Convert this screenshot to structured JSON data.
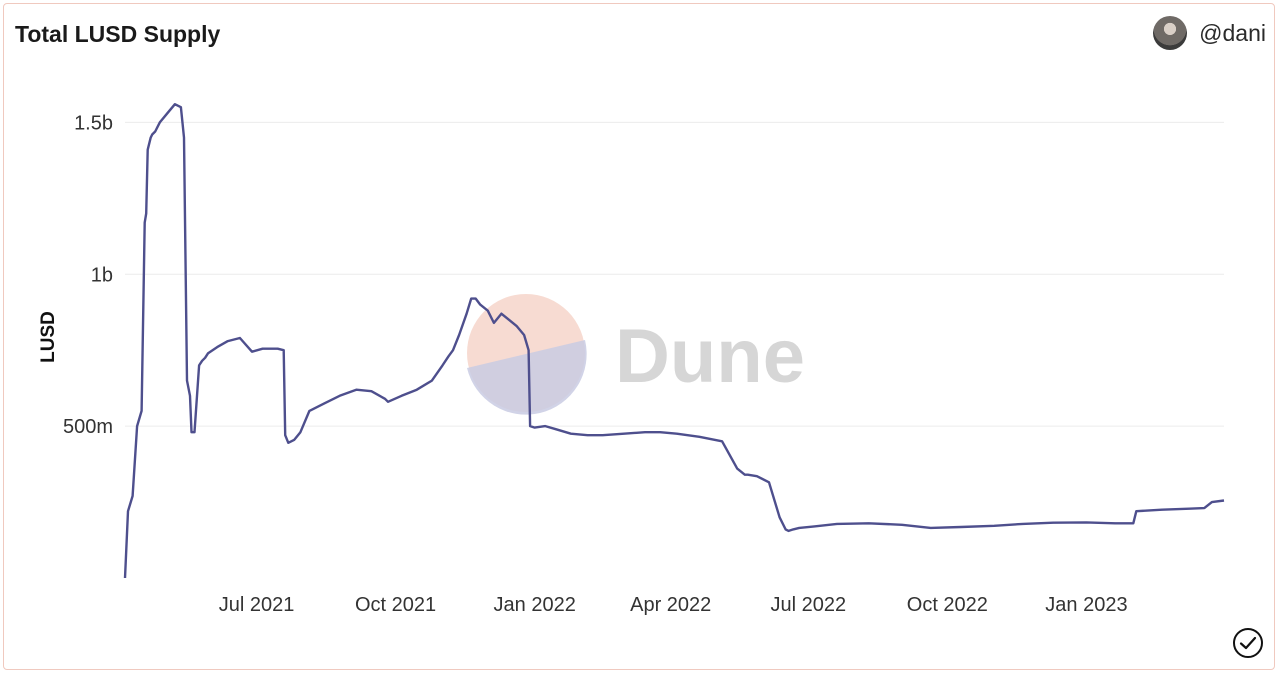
{
  "header": {
    "title": "Total LUSD Supply",
    "author": "@dani"
  },
  "watermark": {
    "text": "Dune"
  },
  "colors": {
    "line": "#4e4f8d",
    "grid": "#ececec",
    "axis_text": "#333333"
  },
  "icons": {
    "avatar": "user-avatar",
    "status": "check-circle-icon"
  },
  "chart_data": {
    "type": "line",
    "title": "Total LUSD Supply",
    "xlabel": "",
    "ylabel": "LUSD",
    "ylim": [
      0,
      1600000000
    ],
    "yticks": [
      {
        "value": 500000000,
        "label": "500m"
      },
      {
        "value": 1000000000,
        "label": "1b"
      },
      {
        "value": 1500000000,
        "label": "1.5b"
      }
    ],
    "xlim": [
      "2021-04-05",
      "2023-04-02"
    ],
    "xticks": [
      {
        "value": "2021-07-01",
        "label": "Jul 2021"
      },
      {
        "value": "2021-10-01",
        "label": "Oct 2021"
      },
      {
        "value": "2022-01-01",
        "label": "Jan 2022"
      },
      {
        "value": "2022-04-01",
        "label": "Apr 2022"
      },
      {
        "value": "2022-07-01",
        "label": "Jul 2022"
      },
      {
        "value": "2022-10-01",
        "label": "Oct 2022"
      },
      {
        "value": "2023-01-01",
        "label": "Jan 2023"
      }
    ],
    "grid": true,
    "legend": "none",
    "series": [
      {
        "x": [
          "2021-04-05",
          "2021-04-07",
          "2021-04-10",
          "2021-04-13",
          "2021-04-16",
          "2021-04-18",
          "2021-04-19",
          "2021-04-20",
          "2021-04-22",
          "2021-04-23",
          "2021-04-25",
          "2021-04-28",
          "2021-05-03",
          "2021-05-08",
          "2021-05-12",
          "2021-05-14",
          "2021-05-16",
          "2021-05-18",
          "2021-05-19",
          "2021-05-21",
          "2021-05-24",
          "2021-05-26",
          "2021-05-28",
          "2021-05-30",
          "2021-06-05",
          "2021-06-12",
          "2021-06-20",
          "2021-06-28",
          "2021-07-05",
          "2021-07-10",
          "2021-07-15",
          "2021-07-19",
          "2021-07-20",
          "2021-07-22",
          "2021-07-26",
          "2021-07-30",
          "2021-08-05",
          "2021-08-15",
          "2021-08-25",
          "2021-09-05",
          "2021-09-15",
          "2021-09-24",
          "2021-09-26",
          "2021-10-05",
          "2021-10-15",
          "2021-10-25",
          "2021-11-01",
          "2021-11-05",
          "2021-11-08",
          "2021-11-12",
          "2021-11-17",
          "2021-11-20",
          "2021-11-23",
          "2021-11-26",
          "2021-12-01",
          "2021-12-05",
          "2021-12-10",
          "2021-12-15",
          "2021-12-20",
          "2021-12-25",
          "2021-12-28",
          "2021-12-29",
          "2022-01-01",
          "2022-01-08",
          "2022-01-15",
          "2022-01-25",
          "2022-02-05",
          "2022-02-15",
          "2022-03-01",
          "2022-03-15",
          "2022-03-25",
          "2022-04-05",
          "2022-04-20",
          "2022-05-05",
          "2022-05-15",
          "2022-05-20",
          "2022-05-22",
          "2022-05-28",
          "2022-06-05",
          "2022-06-12",
          "2022-06-16",
          "2022-06-18",
          "2022-06-21",
          "2022-06-25",
          "2022-07-05",
          "2022-07-20",
          "2022-08-10",
          "2022-09-01",
          "2022-09-20",
          "2022-10-10",
          "2022-11-01",
          "2022-11-20",
          "2022-12-10",
          "2023-01-01",
          "2023-01-20",
          "2023-02-01",
          "2023-02-03",
          "2023-02-20",
          "2023-03-10",
          "2023-03-20",
          "2023-03-25",
          "2023-04-02"
        ],
        "y": [
          0,
          220000000,
          270000000,
          500000000,
          550000000,
          1170000000,
          1200000000,
          1410000000,
          1450000000,
          1460000000,
          1470000000,
          1500000000,
          1530000000,
          1560000000,
          1550000000,
          1450000000,
          650000000,
          600000000,
          480000000,
          480000000,
          700000000,
          715000000,
          725000000,
          740000000,
          760000000,
          780000000,
          790000000,
          745000000,
          755000000,
          755000000,
          755000000,
          750000000,
          470000000,
          445000000,
          455000000,
          480000000,
          550000000,
          575000000,
          600000000,
          620000000,
          615000000,
          590000000,
          580000000,
          600000000,
          620000000,
          650000000,
          700000000,
          730000000,
          750000000,
          800000000,
          870000000,
          920000000,
          920000000,
          900000000,
          880000000,
          840000000,
          870000000,
          850000000,
          830000000,
          800000000,
          750000000,
          500000000,
          495000000,
          500000000,
          490000000,
          475000000,
          470000000,
          470000000,
          475000000,
          480000000,
          480000000,
          475000000,
          465000000,
          450000000,
          360000000,
          340000000,
          340000000,
          335000000,
          315000000,
          200000000,
          160000000,
          155000000,
          160000000,
          165000000,
          170000000,
          178000000,
          180000000,
          175000000,
          165000000,
          168000000,
          172000000,
          178000000,
          182000000,
          183000000,
          180000000,
          180000000,
          220000000,
          225000000,
          228000000,
          230000000,
          250000000,
          255000000
        ]
      }
    ]
  }
}
